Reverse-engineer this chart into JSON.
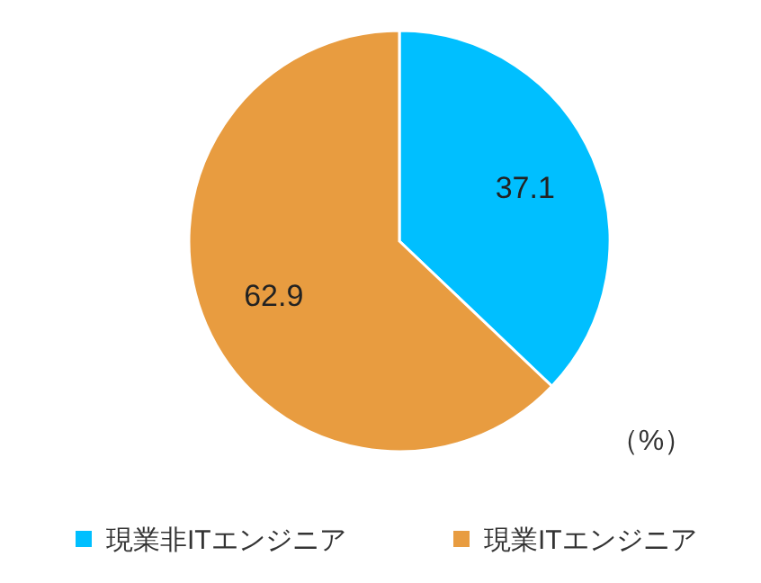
{
  "chart_data": {
    "type": "pie",
    "categories": [
      "現業非ITエンジニア",
      "現業ITエンジニア"
    ],
    "values": [
      37.1,
      62.9
    ],
    "colors": [
      "#00bfff",
      "#e89c40"
    ],
    "data_labels": true,
    "legend": "bottom",
    "annotations": [
      "（%）"
    ]
  }
}
